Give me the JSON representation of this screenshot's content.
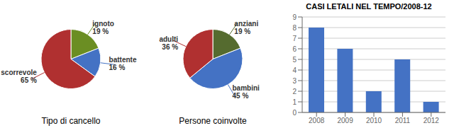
{
  "chart_data": [
    {
      "type": "pie",
      "title": "Tipo di cancello",
      "categories": [
        "ignoto",
        "battente",
        "scorrevole"
      ],
      "values": [
        19,
        16,
        65
      ],
      "value_labels": [
        "19 %",
        "16 %",
        "65 %"
      ],
      "colors": [
        "#6b8e23",
        "#4472c4",
        "#b03030"
      ],
      "data_labels": true
    },
    {
      "type": "pie",
      "title": "Persone coinvolte",
      "categories": [
        "anziani",
        "bambini",
        "adulti"
      ],
      "values": [
        19,
        45,
        36
      ],
      "value_labels": [
        "19 %",
        "45 %",
        "36 %"
      ],
      "colors": [
        "#556b2f",
        "#4472c4",
        "#b03030"
      ],
      "data_labels": true
    },
    {
      "type": "bar",
      "title": "CASI LETALI NEL TEMPO/2008-12",
      "categories": [
        "2008",
        "2009",
        "2010",
        "2011",
        "2012"
      ],
      "values": [
        8,
        6,
        2,
        5,
        1
      ],
      "color": "#4472c4",
      "ylim": [
        0,
        9
      ],
      "yticks": [
        0,
        1,
        2,
        3,
        4,
        5,
        6,
        7,
        8,
        9
      ],
      "grid": true
    }
  ]
}
